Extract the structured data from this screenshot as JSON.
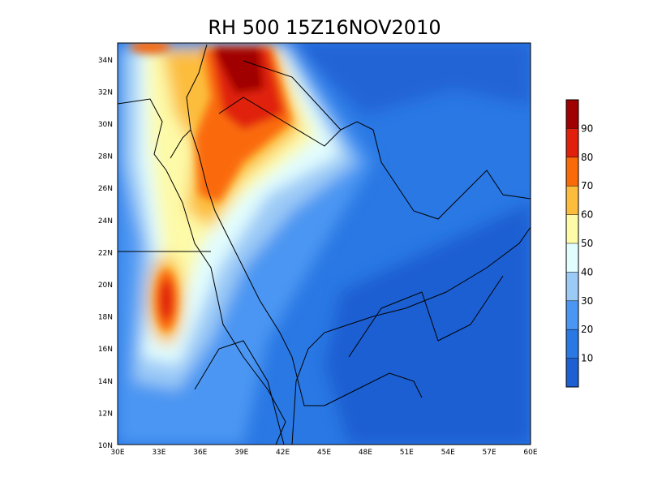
{
  "title": "RH 500 15Z16NOV2010",
  "map": {
    "lat_labels": [
      "10N",
      "12N",
      "14N",
      "16N",
      "18N",
      "20N",
      "22N",
      "24N",
      "26N",
      "28N",
      "30N",
      "32N",
      "34N"
    ],
    "lon_labels": [
      "30E",
      "33E",
      "36E",
      "39E",
      "42E",
      "45E",
      "48E",
      "51E",
      "54E",
      "57E",
      "60E"
    ]
  },
  "colorbar": {
    "levels": [
      10,
      20,
      30,
      40,
      50,
      60,
      70,
      80,
      90
    ],
    "colors": [
      "#1e5fd2",
      "#2a78e4",
      "#4b96f2",
      "#9ccaf6",
      "#e2fdfe",
      "#fdfaa8",
      "#fcbd3c",
      "#fa6a08",
      "#e0200a",
      "#a00000"
    ]
  }
}
